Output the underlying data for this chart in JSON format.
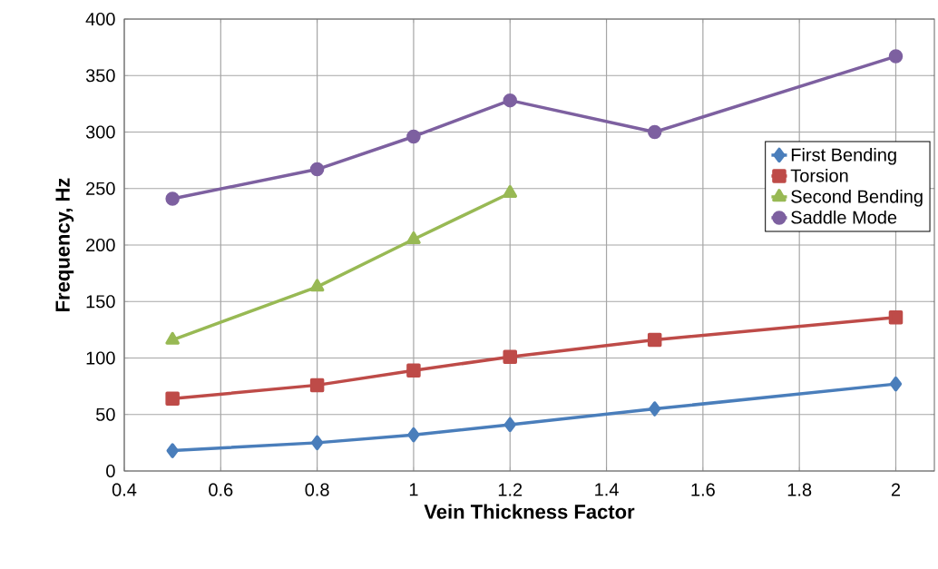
{
  "chart_data": {
    "type": "line",
    "xlabel": "Vein Thickness Factor",
    "ylabel": "Frequency, Hz",
    "x": [
      0.5,
      0.8,
      1,
      1.2,
      1.5,
      2
    ],
    "series": [
      {
        "name": "First Bending",
        "color": "#4a7ebb",
        "marker": "diamond",
        "values": [
          18,
          25,
          32,
          41,
          55,
          77
        ]
      },
      {
        "name": "Torsion",
        "color": "#be4b48",
        "marker": "square",
        "values": [
          64,
          76,
          89,
          101,
          116,
          136
        ]
      },
      {
        "name": "Second Bending",
        "color": "#98b954",
        "marker": "triangle",
        "values": [
          116,
          163,
          205,
          246,
          null,
          null
        ]
      },
      {
        "name": "Saddle Mode",
        "color": "#7d60a0",
        "marker": "circle",
        "values": [
          241,
          267,
          296,
          328,
          300,
          367
        ]
      }
    ],
    "xlim": [
      0.4,
      2.08
    ],
    "xticks": [
      0.4,
      0.6,
      0.8,
      1,
      1.2,
      1.4,
      1.6,
      1.8,
      2
    ],
    "ylim": [
      0,
      400
    ],
    "yticks": [
      0,
      50,
      100,
      150,
      200,
      250,
      300,
      350,
      400
    ],
    "grid": true,
    "legend": "right",
    "line_style": "solid"
  }
}
